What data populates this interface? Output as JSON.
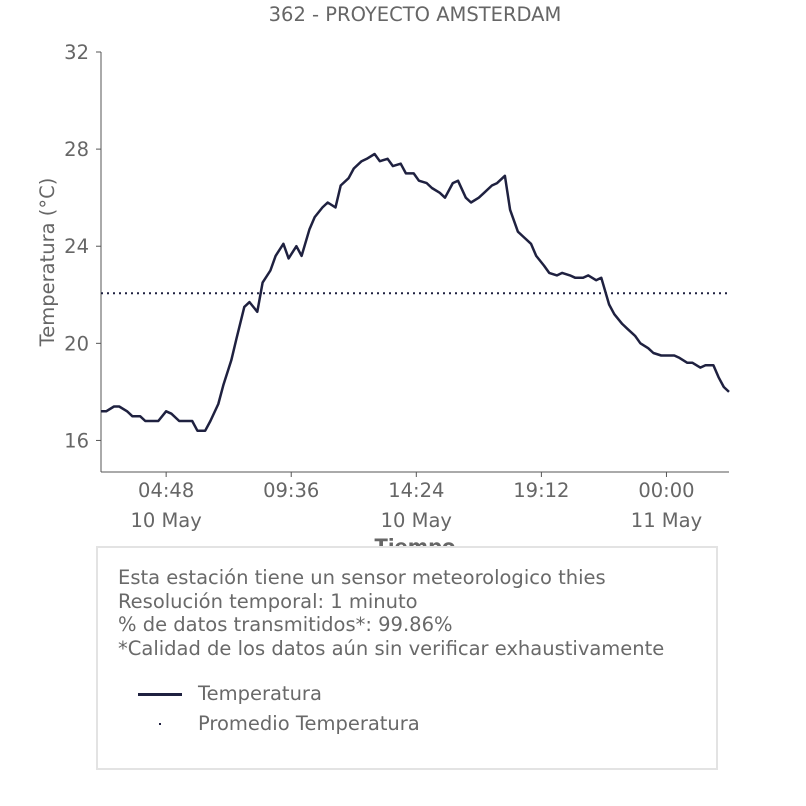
{
  "chart_data": {
    "type": "line",
    "title": "362 - PROYECTO AMSTERDAM",
    "xlabel": "Tiempo",
    "ylabel": "Temperatura (°C)",
    "ylim": [
      14.7,
      32
    ],
    "yticks": [
      16,
      20,
      24,
      28,
      32
    ],
    "xticks": [
      {
        "t": 4.8,
        "time": "04:48",
        "date": "10 May"
      },
      {
        "t": 9.6,
        "time": "09:36",
        "date": ""
      },
      {
        "t": 14.4,
        "time": "14:24",
        "date": "10 May"
      },
      {
        "t": 19.2,
        "time": "19:12",
        "date": ""
      },
      {
        "t": 24.0,
        "time": "00:00",
        "date": "11 May"
      }
    ],
    "x_unit": "hours from 00:00 10 May",
    "xlim": [
      2.3,
      26.4
    ],
    "series": [
      {
        "name": "Temperatura",
        "style": "solid",
        "color": "#1f2140",
        "x": [
          2.3,
          2.5,
          2.8,
          3.0,
          3.3,
          3.5,
          3.8,
          4.0,
          4.3,
          4.5,
          4.8,
          5.0,
          5.3,
          5.5,
          5.8,
          6.0,
          6.3,
          6.5,
          6.8,
          7.0,
          7.3,
          7.5,
          7.8,
          8.0,
          8.3,
          8.5,
          8.8,
          9.0,
          9.3,
          9.5,
          9.8,
          10.0,
          10.3,
          10.5,
          10.8,
          11.0,
          11.3,
          11.5,
          11.8,
          12.0,
          12.3,
          12.5,
          12.8,
          13.0,
          13.3,
          13.5,
          13.8,
          14.0,
          14.3,
          14.5,
          14.8,
          15.0,
          15.3,
          15.5,
          15.8,
          16.0,
          16.3,
          16.5,
          16.8,
          17.0,
          17.3,
          17.5,
          17.8,
          18.0,
          18.3,
          18.5,
          18.8,
          19.0,
          19.3,
          19.5,
          19.8,
          20.0,
          20.3,
          20.5,
          20.8,
          21.0,
          21.3,
          21.5,
          21.8,
          22.0,
          22.3,
          22.5,
          22.8,
          23.0,
          23.3,
          23.5,
          23.8,
          24.0,
          24.3,
          24.5,
          24.8,
          25.0,
          25.3,
          25.5,
          25.8,
          26.0,
          26.2,
          26.4
        ],
        "y": [
          17.2,
          17.2,
          17.4,
          17.4,
          17.2,
          17.0,
          17.0,
          16.8,
          16.8,
          16.8,
          17.2,
          17.1,
          16.8,
          16.8,
          16.8,
          16.4,
          16.4,
          16.8,
          17.5,
          18.3,
          19.3,
          20.2,
          21.5,
          21.7,
          21.3,
          22.5,
          23.0,
          23.6,
          24.1,
          23.5,
          24.0,
          23.6,
          24.7,
          25.2,
          25.6,
          25.8,
          25.6,
          26.5,
          26.8,
          27.2,
          27.5,
          27.6,
          27.8,
          27.5,
          27.6,
          27.3,
          27.4,
          27.0,
          27.0,
          26.7,
          26.6,
          26.4,
          26.2,
          26.0,
          26.6,
          26.7,
          26.0,
          25.8,
          26.0,
          26.2,
          26.5,
          26.6,
          26.9,
          25.5,
          24.6,
          24.4,
          24.1,
          23.6,
          23.2,
          22.9,
          22.8,
          22.9,
          22.8,
          22.7,
          22.7,
          22.8,
          22.6,
          22.7,
          21.6,
          21.2,
          20.8,
          20.6,
          20.3,
          20.0,
          19.8,
          19.6,
          19.5,
          19.5,
          19.5,
          19.4,
          19.2,
          19.2,
          19.0,
          19.1,
          19.1,
          18.6,
          18.2,
          18.0
        ]
      },
      {
        "name": "Promedio Temperatura",
        "style": "dotted",
        "color": "#1f2140",
        "x": [
          2.3,
          26.4
        ],
        "y": [
          22.06,
          22.06
        ]
      }
    ],
    "grid": false,
    "legend": "bottom"
  },
  "info": {
    "lines": [
      "Esta estación tiene un sensor meteorologico thies",
      "Resolución temporal: 1 minuto",
      "% de datos transmitidos*: 99.86%",
      "*Calidad de los datos aún sin verificar exhaustivamente"
    ]
  },
  "colors": {
    "line": "#1f2140",
    "text": "#666666",
    "axis": "#555555"
  }
}
